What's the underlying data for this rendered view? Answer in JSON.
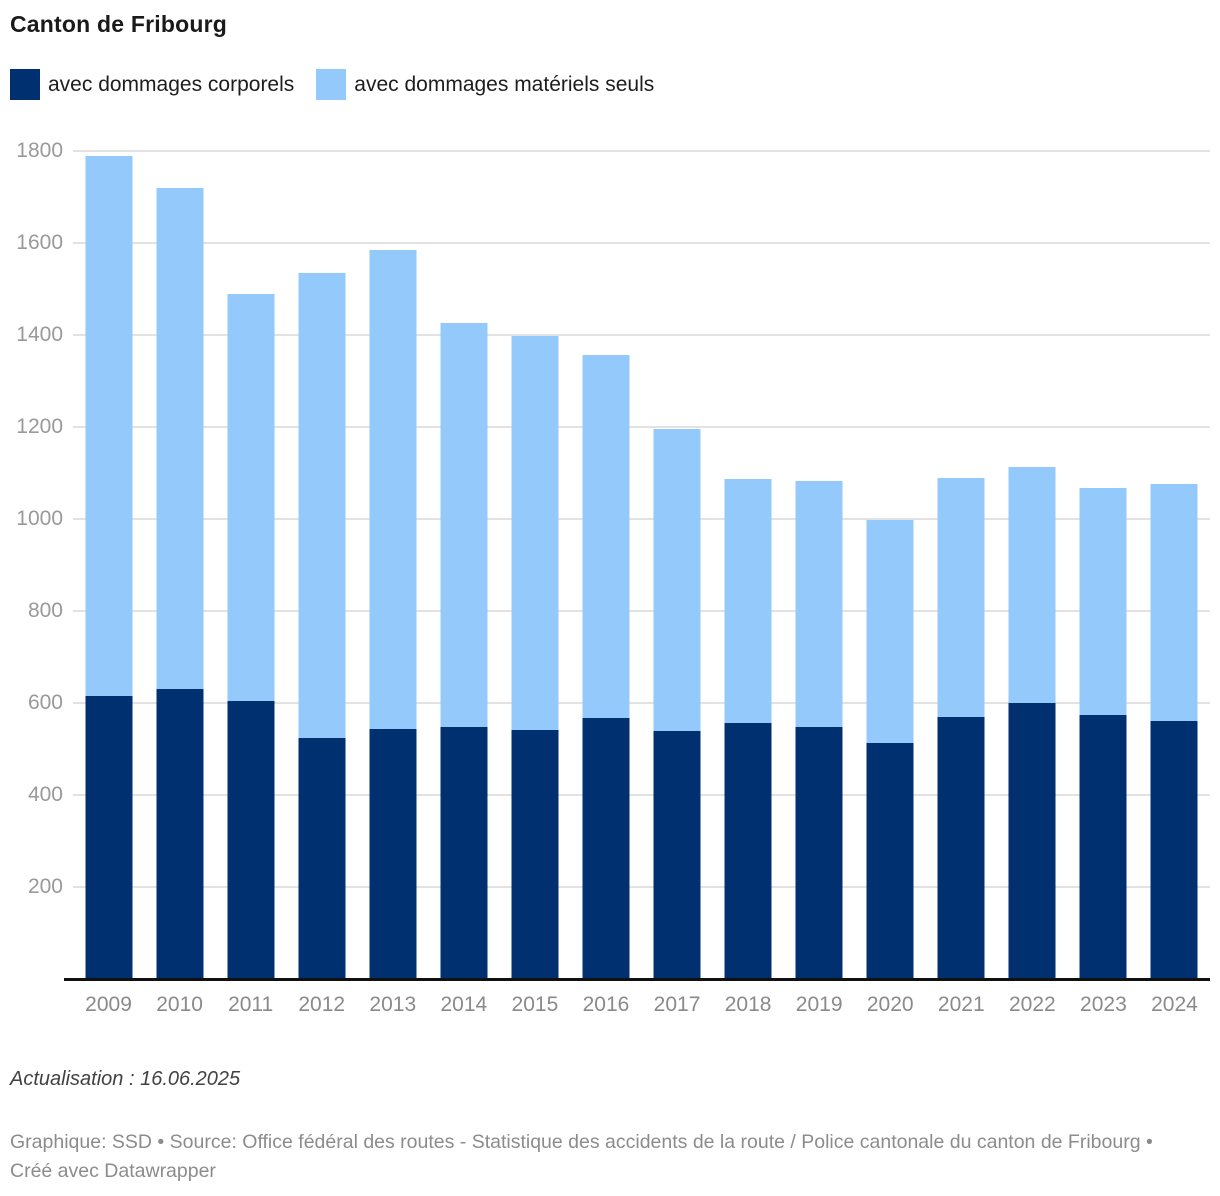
{
  "title": "Canton de Fribourg",
  "legend": {
    "items": [
      {
        "label": "avec dommages corporels",
        "color": "#003070"
      },
      {
        "label": "avec dommages matériels seuls",
        "color": "#94c9fb"
      }
    ]
  },
  "footer": {
    "update_note": "Actualisation : 16.06.2025",
    "credit": "Graphique: SSD • Source: Office fédéral des routes - Statistique des accidents de la route / Police cantonale du canton de Fribourg • Créé avec Datawrapper"
  },
  "colors": {
    "corporels": "#003070",
    "materiels": "#94c9fb",
    "gridline": "#e2e2e2",
    "axis_line": "#111111",
    "tick_label": "#999999"
  },
  "chart_data": {
    "type": "bar",
    "stacked": true,
    "title": "Canton de Fribourg",
    "categories": [
      "2009",
      "2010",
      "2011",
      "2012",
      "2013",
      "2014",
      "2015",
      "2016",
      "2017",
      "2018",
      "2019",
      "2020",
      "2021",
      "2022",
      "2023",
      "2024"
    ],
    "series": [
      {
        "name": "avec dommages corporels",
        "color": "#003070",
        "values": [
          615,
          630,
          604,
          524,
          543,
          548,
          541,
          568,
          539,
          556,
          548,
          512,
          570,
          600,
          573,
          560
        ]
      },
      {
        "name": "avec dommages matériels seuls",
        "color": "#94c9fb",
        "values": [
          1175,
          1090,
          886,
          1010,
          1041,
          879,
          857,
          789,
          657,
          530,
          534,
          485,
          519,
          513,
          494,
          516
        ]
      }
    ],
    "totals": [
      1790,
      1720,
      1490,
      1534,
      1584,
      1427,
      1398,
      1357,
      1196,
      1086,
      1082,
      997,
      1089,
      1113,
      1067,
      1076
    ],
    "xlabel": "",
    "ylabel": "",
    "ylim": [
      0,
      1800
    ],
    "yticks": [
      200,
      400,
      600,
      800,
      1000,
      1200,
      1400,
      1600,
      1800
    ],
    "grid": true,
    "legend_position": "top"
  }
}
